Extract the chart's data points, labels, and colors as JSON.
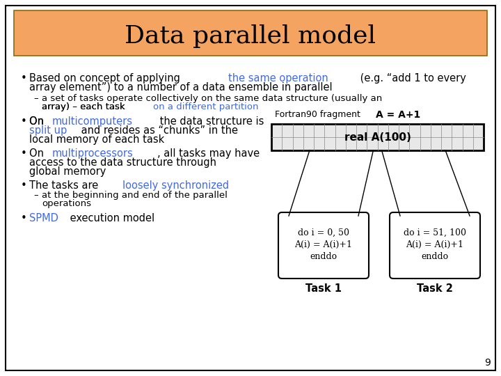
{
  "title": "Data parallel model",
  "title_bg_color": "#F4A460",
  "title_fontsize": 28,
  "bg_color": "#FFFFFF",
  "slide_border_color": "#000000",
  "text_color": "#000000",
  "blue_color": "#4169E1",
  "highlight_color": "#4169E1",
  "bullet_items": [
    {
      "text_parts": [
        {
          "text": "Based on concept of applying ",
          "color": "#000000",
          "bold": false
        },
        {
          "text": "the same operation",
          "color": "#4169E1",
          "bold": false
        },
        {
          "text": " (e.g. “add 1 to every\narray element”) to a number of a data ensemble in parallel",
          "color": "#000000",
          "bold": false
        }
      ],
      "indent": 0
    },
    {
      "text_parts": [
        {
          "text": "a set of tasks operate collectively on the same data structure (usually an\narray) – each task ",
          "color": "#000000",
          "bold": false
        },
        {
          "text": "on a different partition",
          "color": "#4169E1",
          "bold": false
        }
      ],
      "indent": 1
    },
    {
      "text_parts": [
        {
          "text": "On ",
          "color": "#000000",
          "bold": false
        },
        {
          "text": "multicomputers",
          "color": "#4169E1",
          "bold": false
        },
        {
          "text": " the data structure is\n",
          "color": "#000000",
          "bold": false
        },
        {
          "text": "split up",
          "color": "#4169E1",
          "bold": false
        },
        {
          "text": " and resides as “chunks” in the\nlocal memory of each task",
          "color": "#000000",
          "bold": false
        }
      ],
      "indent": 0
    },
    {
      "text_parts": [
        {
          "text": "On ",
          "color": "#000000",
          "bold": false
        },
        {
          "text": "multiprocessors",
          "color": "#4169E1",
          "bold": false
        },
        {
          "text": ", all tasks may have\naccess to the data structure through\nglobal memory",
          "color": "#000000",
          "bold": false
        }
      ],
      "indent": 0
    },
    {
      "text_parts": [
        {
          "text": "The tasks are ",
          "color": "#000000",
          "bold": false
        },
        {
          "text": "loosely synchronized",
          "color": "#4169E1",
          "bold": false
        }
      ],
      "indent": 0
    },
    {
      "text_parts": [
        {
          "text": "at the beginning and end of the parallel\noperations",
          "color": "#000000",
          "bold": false
        }
      ],
      "indent": 1
    },
    {
      "text_parts": [
        {
          "text": "SPMD",
          "color": "#4169E1",
          "bold": false
        },
        {
          "text": " execution model",
          "color": "#000000",
          "bold": false
        }
      ],
      "indent": 0
    }
  ],
  "page_number": "9"
}
